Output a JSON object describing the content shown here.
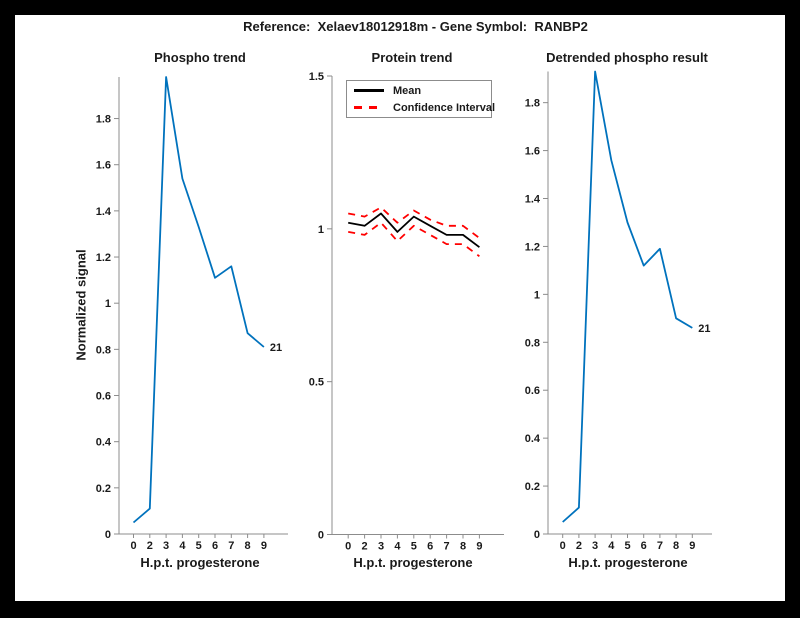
{
  "figure": {
    "title": "Reference:  Xelaev18012918m - Gene Symbol:  RANBP2",
    "background_color": "#ffffff",
    "frame_color": "#000000",
    "axis_color": "#8c8c8c",
    "text_color": "#1a1a1a"
  },
  "chart_data": [
    {
      "type": "line",
      "title": "Phospho trend",
      "xlabel": "H.p.t. progesterone",
      "ylabel": "Normalized signal",
      "x_tick_labels": [
        "0",
        "2",
        "3",
        "4",
        "5",
        "6",
        "7",
        "8",
        "9"
      ],
      "y_ticks": [
        0,
        0.2,
        0.4,
        0.6,
        0.8,
        1,
        1.2,
        1.4,
        1.6,
        1.8
      ],
      "ylim": [
        0,
        1.98
      ],
      "grid": false,
      "series": [
        {
          "name": "Phospho signal",
          "color": "#0072BD",
          "line_style": "solid",
          "values": [
            0.05,
            0.11,
            1.98,
            1.54,
            1.33,
            1.11,
            1.16,
            0.87,
            0.81
          ]
        }
      ],
      "end_label": "21"
    },
    {
      "type": "line",
      "title": "Protein trend",
      "xlabel": "H.p.t. progesterone",
      "ylabel": "",
      "x_tick_labels": [
        "0",
        "2",
        "3",
        "4",
        "5",
        "6",
        "7",
        "8",
        "9"
      ],
      "y_ticks": [
        0,
        0.5,
        1,
        1.5
      ],
      "ylim": [
        0,
        1.5
      ],
      "grid": false,
      "legend": {
        "position": "northwest",
        "entries": [
          {
            "label": "Mean",
            "color": "#000000",
            "line_style": "solid"
          },
          {
            "label": "Confidence Interval",
            "color": "#ff0000",
            "line_style": "dashed"
          }
        ]
      },
      "series": [
        {
          "name": "Mean",
          "color": "#000000",
          "line_style": "solid",
          "values": [
            1.02,
            1.01,
            1.05,
            0.99,
            1.04,
            1.01,
            0.98,
            0.98,
            0.94
          ]
        },
        {
          "name": "Confidence Interval upper",
          "color": "#ff0000",
          "line_style": "dashed",
          "values": [
            1.05,
            1.04,
            1.07,
            1.02,
            1.06,
            1.03,
            1.01,
            1.01,
            0.97
          ]
        },
        {
          "name": "Confidence Interval lower",
          "color": "#ff0000",
          "line_style": "dashed",
          "values": [
            0.99,
            0.98,
            1.02,
            0.96,
            1.01,
            0.98,
            0.95,
            0.95,
            0.91
          ]
        }
      ]
    },
    {
      "type": "line",
      "title": "Detrended phospho result",
      "xlabel": "H.p.t. progesterone",
      "ylabel": "",
      "x_tick_labels": [
        "0",
        "2",
        "3",
        "4",
        "5",
        "6",
        "7",
        "8",
        "9"
      ],
      "y_ticks": [
        0,
        0.2,
        0.4,
        0.6,
        0.8,
        1,
        1.2,
        1.4,
        1.6,
        1.8
      ],
      "ylim": [
        0,
        1.93
      ],
      "grid": false,
      "series": [
        {
          "name": "Detrended phospho signal",
          "color": "#0072BD",
          "line_style": "solid",
          "values": [
            0.05,
            0.11,
            1.93,
            1.56,
            1.3,
            1.12,
            1.19,
            0.9,
            0.86
          ]
        }
      ],
      "end_label": "21"
    }
  ]
}
